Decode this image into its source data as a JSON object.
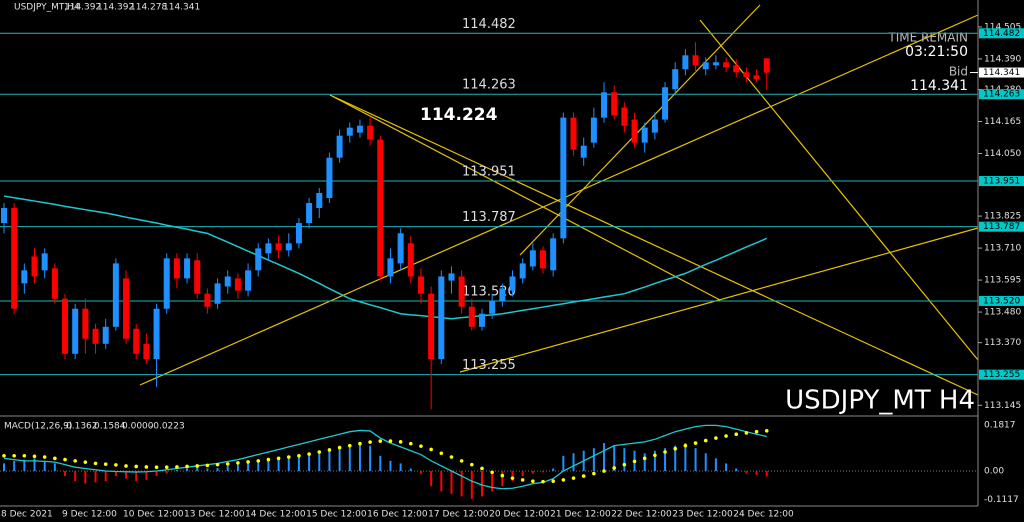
{
  "chart_data": [
    {
      "type": "candlestick",
      "title": "USDJPY_MT,H4",
      "watermark": "USDJPY_MT H4",
      "categories": [
        "8 Dec 2021",
        null,
        null,
        null,
        null,
        null,
        "9 Dec 12:00",
        null,
        null,
        null,
        null,
        null,
        "10 Dec 12:00",
        null,
        null,
        null,
        null,
        null,
        "13 Dec 12:00",
        null,
        null,
        null,
        null,
        null,
        "14 Dec 12:00",
        null,
        null,
        null,
        null,
        null,
        "15 Dec 12:00",
        null,
        null,
        null,
        null,
        null,
        "16 Dec 12:00",
        null,
        null,
        null,
        null,
        null,
        "17 Dec 12:00",
        null,
        null,
        null,
        null,
        null,
        "20 Dec 12:00",
        null,
        null,
        null,
        null,
        null,
        "21 Dec 12:00",
        null,
        null,
        null,
        null,
        null,
        "22 Dec 12:00",
        null,
        null,
        null,
        null,
        null,
        "23 Dec 12:00",
        null,
        null,
        null,
        null,
        null,
        "24 Dec 12:00",
        null,
        null,
        null
      ],
      "open": [
        113.8,
        113.854,
        113.583,
        113.68,
        113.63,
        113.637,
        113.528,
        113.33,
        113.492,
        113.42,
        113.366,
        113.427,
        113.601,
        113.42,
        113.366,
        113.311,
        113.492,
        113.673,
        113.601,
        113.666,
        113.546,
        113.51,
        113.572,
        113.601,
        113.557,
        113.63,
        113.691,
        113.727,
        113.702,
        113.727,
        113.8,
        113.854,
        113.89,
        114.035,
        114.114,
        114.125,
        114.15,
        114.1,
        113.608,
        113.655,
        113.727,
        113.608,
        113.546,
        113.311,
        113.593,
        113.608,
        113.499,
        113.427,
        113.474,
        113.521,
        113.557,
        113.601,
        113.644,
        113.702,
        113.63,
        113.745,
        114.179,
        114.035,
        114.089,
        114.179,
        114.27,
        114.215,
        114.172,
        114.089,
        114.125,
        114.172,
        114.281,
        114.353,
        114.403,
        114.353,
        114.367,
        114.378,
        114.367,
        114.342,
        114.331,
        114.392
      ],
      "high": [
        113.872,
        113.872,
        113.655,
        113.709,
        113.709,
        113.655,
        113.546,
        113.51,
        113.528,
        113.438,
        113.456,
        113.673,
        113.63,
        113.438,
        113.402,
        113.51,
        113.691,
        113.691,
        113.691,
        113.691,
        113.565,
        113.601,
        113.63,
        113.619,
        113.655,
        113.727,
        113.745,
        113.753,
        113.763,
        113.818,
        113.89,
        113.926,
        114.053,
        114.136,
        114.161,
        114.172,
        114.179,
        114.114,
        113.709,
        113.781,
        113.753,
        113.637,
        113.572,
        113.63,
        113.644,
        113.63,
        113.528,
        113.492,
        113.546,
        113.583,
        113.63,
        113.673,
        113.727,
        113.716,
        113.763,
        114.197,
        114.197,
        114.107,
        114.215,
        114.306,
        114.295,
        114.234,
        114.197,
        114.161,
        114.197,
        114.306,
        114.378,
        114.425,
        114.45,
        114.396,
        114.403,
        114.396,
        114.389,
        114.36,
        114.353,
        114.392
      ],
      "low": [
        113.763,
        113.474,
        113.546,
        113.583,
        113.601,
        113.51,
        113.311,
        113.311,
        113.33,
        113.33,
        113.348,
        113.413,
        113.366,
        113.311,
        113.293,
        113.21,
        113.474,
        113.565,
        113.583,
        113.528,
        113.474,
        113.492,
        113.546,
        113.528,
        113.536,
        113.608,
        113.666,
        113.673,
        113.68,
        113.709,
        113.781,
        113.818,
        113.872,
        114.017,
        114.089,
        114.107,
        114.078,
        113.593,
        113.583,
        113.63,
        113.583,
        113.51,
        113.131,
        113.293,
        113.546,
        113.474,
        113.413,
        113.413,
        113.456,
        113.499,
        113.536,
        113.583,
        113.63,
        113.619,
        113.608,
        113.727,
        114.042,
        114.006,
        114.071,
        114.161,
        114.172,
        114.125,
        114.071,
        114.053,
        114.1,
        114.161,
        114.259,
        114.331,
        114.342,
        114.331,
        114.353,
        114.342,
        114.324,
        114.306,
        114.306,
        114.278
      ],
      "close": [
        113.854,
        113.492,
        113.63,
        113.608,
        113.691,
        113.528,
        113.33,
        113.492,
        113.384,
        113.366,
        113.427,
        113.655,
        113.384,
        113.33,
        113.311,
        113.492,
        113.673,
        113.601,
        113.673,
        113.546,
        113.499,
        113.583,
        113.608,
        113.557,
        113.63,
        113.709,
        113.727,
        113.702,
        113.727,
        113.8,
        113.872,
        113.908,
        114.035,
        114.114,
        114.143,
        114.15,
        114.1,
        113.608,
        113.673,
        113.763,
        113.608,
        113.546,
        113.311,
        113.608,
        113.619,
        113.499,
        113.427,
        113.474,
        113.521,
        113.565,
        113.608,
        113.655,
        113.702,
        113.637,
        113.745,
        114.179,
        114.064,
        114.078,
        114.179,
        114.27,
        114.187,
        114.15,
        114.089,
        114.143,
        114.172,
        114.288,
        114.353,
        114.403,
        114.367,
        114.378,
        114.378,
        114.36,
        114.342,
        114.324,
        114.317,
        114.341
      ],
      "up_color": "#1e90ff",
      "down_color": "#ff0000",
      "ma": {
        "color": "#1fc8d0",
        "values": [
          113.897,
          113.891,
          113.885,
          113.879,
          113.873,
          113.867,
          113.86,
          113.854,
          113.848,
          113.842,
          113.836,
          113.829,
          113.821,
          113.814,
          113.807,
          113.8,
          113.792,
          113.785,
          113.778,
          113.77,
          113.763,
          113.747,
          113.731,
          113.715,
          113.699,
          113.683,
          113.667,
          113.651,
          113.635,
          113.619,
          113.601,
          113.583,
          113.564,
          113.546,
          113.528,
          113.517,
          113.506,
          113.496,
          113.485,
          113.474,
          113.47,
          113.467,
          113.463,
          113.46,
          113.456,
          113.46,
          113.463,
          113.467,
          113.47,
          113.474,
          113.48,
          113.486,
          113.492,
          113.498,
          113.504,
          113.51,
          113.516,
          113.522,
          113.528,
          113.534,
          113.54,
          113.546,
          113.558,
          113.57,
          113.583,
          113.595,
          113.607,
          113.619,
          113.635,
          113.651,
          113.666,
          113.682,
          113.698,
          113.714,
          113.729,
          113.745
        ]
      },
      "levels": {
        "color": "#20b2b8",
        "values": [
          114.482,
          114.263,
          113.951,
          113.787,
          {
            "value": 113.52,
            "label": "113.520"
          },
          113.255
        ]
      },
      "annotation": "114.224",
      "timer": {
        "label": "TIME REMAIN",
        "value": "03:21:50"
      },
      "bid": {
        "label": "Bid",
        "value": 114.341
      },
      "ylim": [
        113.11,
        114.555
      ],
      "yticks": [
        113.145,
        {
          "value": 113.37,
          "label": "113.370"
        },
        {
          "value": 113.48,
          "label": "113.480"
        },
        113.595,
        {
          "value": 113.71,
          "label": "113.710"
        },
        113.825,
        {
          "value": 114.05,
          "label": "114.050"
        },
        114.165,
        {
          "value": 114.28,
          "label": "114.280"
        },
        {
          "value": 114.39,
          "label": "114.390"
        },
        114.505
      ]
    },
    {
      "type": "macd",
      "title": "MACD(12,26,9)",
      "line": {
        "color": "#1fc8d0",
        "values": [
          0.05,
          0.045,
          0.04,
          0.04,
          0.038,
          0.035,
          0.025,
          0.015,
          0.01,
          0.005,
          0.0,
          -0.002,
          -0.003,
          -0.004,
          -0.003,
          0.0,
          0.005,
          0.01,
          0.015,
          0.02,
          0.025,
          0.03,
          0.038,
          0.045,
          0.055,
          0.065,
          0.075,
          0.085,
          0.095,
          0.105,
          0.115,
          0.125,
          0.135,
          0.145,
          0.155,
          0.16,
          0.158,
          0.13,
          0.11,
          0.095,
          0.08,
          0.065,
          0.04,
          0.02,
          0.0,
          -0.02,
          -0.04,
          -0.055,
          -0.065,
          -0.07,
          -0.068,
          -0.06,
          -0.05,
          -0.045,
          -0.03,
          0.0,
          0.02,
          0.04,
          0.06,
          0.08,
          0.1,
          0.105,
          0.11,
          0.115,
          0.125,
          0.14,
          0.155,
          0.165,
          0.175,
          0.18,
          0.18,
          0.175,
          0.165,
          0.155,
          0.145,
          0.1362
        ]
      },
      "signal": {
        "color": "#ffff00",
        "values": [
          0.06,
          0.06,
          0.06,
          0.058,
          0.055,
          0.05,
          0.045,
          0.04,
          0.035,
          0.03,
          0.027,
          0.024,
          0.02,
          0.018,
          0.016,
          0.015,
          0.015,
          0.016,
          0.018,
          0.02,
          0.022,
          0.025,
          0.028,
          0.032,
          0.036,
          0.04,
          0.045,
          0.05,
          0.055,
          0.06,
          0.067,
          0.075,
          0.083,
          0.092,
          0.1,
          0.108,
          0.114,
          0.118,
          0.118,
          0.115,
          0.108,
          0.098,
          0.085,
          0.07,
          0.055,
          0.04,
          0.025,
          0.01,
          -0.005,
          -0.018,
          -0.028,
          -0.035,
          -0.04,
          -0.042,
          -0.04,
          -0.035,
          -0.028,
          -0.02,
          -0.01,
          0.0,
          0.012,
          0.025,
          0.038,
          0.05,
          0.062,
          0.075,
          0.088,
          0.1,
          0.11,
          0.12,
          0.13,
          0.138,
          0.145,
          0.15,
          0.155,
          0.1584
        ]
      },
      "extra": {
        "value": 0,
        "label": "0.0000"
      },
      "histogram": {
        "up_color": "#1e90ff",
        "down_color": "#ff0000",
        "values": [
          0.03,
          0.04,
          0.045,
          0.05,
          0.04,
          0.03,
          -0.02,
          -0.04,
          -0.05,
          -0.045,
          -0.04,
          -0.02,
          -0.03,
          -0.04,
          -0.035,
          -0.02,
          -0.01,
          0.005,
          0.01,
          0.015,
          0.01,
          0.012,
          0.02,
          0.025,
          0.03,
          0.04,
          0.045,
          0.05,
          0.055,
          0.06,
          0.07,
          0.08,
          0.09,
          0.1,
          0.105,
          0.11,
          0.1,
          0.06,
          0.04,
          0.03,
          0.01,
          -0.01,
          -0.06,
          -0.08,
          -0.09,
          -0.1,
          -0.11,
          -0.1,
          -0.08,
          -0.06,
          -0.04,
          -0.02,
          -0.01,
          -0.005,
          0.01,
          0.06,
          0.07,
          0.08,
          0.09,
          0.11,
          0.1,
          0.09,
          0.08,
          0.07,
          0.08,
          0.09,
          0.1,
          0.11,
          0.09,
          0.07,
          0.05,
          0.03,
          0.01,
          -0.01,
          -0.015,
          -0.0223
        ]
      },
      "ylim": [
        -0.134,
        0.209
      ],
      "yticks": [
        0.1817,
        {
          "value": 0,
          "label": "0.00"
        },
        -0.1117
      ]
    }
  ]
}
